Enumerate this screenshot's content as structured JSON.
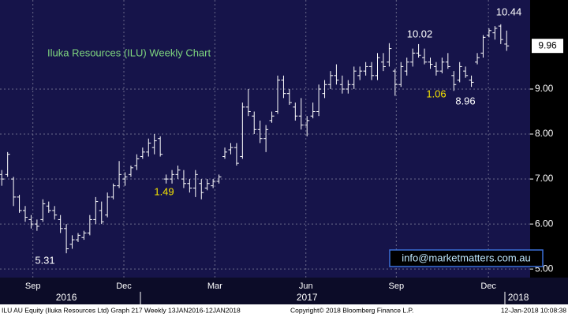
{
  "chart_data": {
    "type": "ohlc",
    "title": "Iluka Resources (ILU) Weekly Chart",
    "color": "#ffffff",
    "ylim": [
      4.81,
      10.98
    ],
    "yticks": [
      {
        "value": 5,
        "label": "5.00"
      },
      {
        "value": 6,
        "label": "6.00"
      },
      {
        "value": 7,
        "label": "7.00"
      },
      {
        "value": 8,
        "label": "8.00"
      },
      {
        "value": 9,
        "label": "9.00"
      }
    ],
    "xlim": [
      -0.3,
      90
    ],
    "xticks": [
      {
        "value": 5.3,
        "label": "Sep"
      },
      {
        "value": 20.8,
        "label": "Dec"
      },
      {
        "value": 36.3,
        "label": "Mar"
      },
      {
        "value": 51.8,
        "label": "Jun"
      },
      {
        "value": 67.2,
        "label": "Sep"
      },
      {
        "value": 82.9,
        "label": "Dec"
      }
    ],
    "year_labels": [
      {
        "value": 11,
        "label": "2016"
      },
      {
        "value": 52,
        "label": "2017"
      },
      {
        "value": 88,
        "label": "2018"
      }
    ],
    "grid": true,
    "last_price": 9.96,
    "annotations": [
      "10.44",
      "10.02",
      "1.06",
      "8.96",
      "1.49",
      "5.31"
    ],
    "website": "info@marketmatters.com.au",
    "footer": [
      "ILU AU Equity (Iluka Resources Ltd) Graph 217  Weekly 13JAN2016-12JAN2018",
      "Copyright© 2018 Bloomberg Finance L.P.",
      "12-Jan-2018 10:08:38"
    ],
    "open": [
      7.1,
      7.1,
      7.0,
      6.6,
      6.3,
      6.1,
      6.0,
      6.1,
      6.4,
      6.3,
      6.1,
      5.9,
      5.55,
      5.65,
      5.7,
      5.8,
      6.1,
      6.3,
      6.2,
      6.6,
      6.85,
      7.0,
      7.1,
      7.3,
      7.5,
      7.6,
      7.7,
      7.9,
      7.0,
      7.0,
      7.1,
      7.0,
      6.9,
      6.8,
      6.9,
      6.8,
      6.85,
      6.95,
      7.5,
      7.65,
      7.7,
      7.5,
      8.6,
      8.4,
      8.1,
      7.9,
      8.3,
      8.5,
      9.2,
      8.9,
      8.6,
      8.4,
      8.2,
      8.4,
      8.5,
      8.9,
      9.1,
      9.3,
      9.1,
      9.0,
      9.1,
      9.3,
      9.4,
      9.5,
      9.3,
      9.6,
      9.6,
      9.4,
      9.1,
      9.4,
      9.6,
      9.8,
      9.7,
      9.6,
      9.5,
      9.4,
      9.6,
      9.3,
      9.2,
      9.4,
      9.2,
      9.6,
      9.8,
      10.2,
      10.25,
      10.4,
      10.0
    ],
    "high": [
      7.2,
      7.6,
      7.05,
      6.65,
      6.4,
      6.2,
      6.1,
      6.55,
      6.5,
      6.4,
      6.2,
      6.0,
      5.75,
      5.8,
      5.85,
      6.2,
      6.6,
      6.5,
      6.7,
      6.9,
      7.4,
      7.15,
      7.3,
      7.55,
      7.7,
      7.9,
      8.0,
      7.95,
      7.1,
      7.2,
      7.3,
      7.2,
      7.0,
      7.2,
      7.0,
      7.0,
      7.0,
      7.1,
      7.7,
      7.8,
      7.8,
      8.7,
      9.0,
      8.5,
      8.3,
      8.2,
      8.5,
      9.3,
      9.3,
      9.0,
      8.7,
      8.8,
      8.4,
      8.7,
      9.1,
      9.2,
      9.4,
      9.55,
      9.3,
      9.2,
      9.5,
      9.5,
      9.6,
      9.6,
      9.8,
      9.8,
      10.02,
      9.45,
      9.6,
      9.7,
      9.9,
      10.0,
      9.9,
      9.7,
      9.6,
      9.7,
      9.8,
      9.4,
      9.6,
      9.5,
      9.3,
      9.8,
      10.2,
      10.35,
      10.4,
      10.44,
      10.3
    ],
    "low": [
      6.85,
      7.05,
      6.4,
      6.25,
      6.05,
      5.9,
      5.85,
      6.05,
      6.25,
      6.1,
      5.8,
      5.35,
      5.45,
      5.6,
      5.65,
      5.75,
      6.0,
      6.0,
      6.15,
      6.55,
      6.8,
      6.85,
      7.05,
      7.2,
      7.45,
      7.5,
      7.55,
      7.5,
      6.9,
      6.9,
      7.0,
      6.8,
      6.7,
      6.6,
      6.55,
      6.75,
      6.8,
      6.9,
      7.45,
      7.55,
      7.3,
      7.45,
      8.4,
      8.0,
      7.8,
      7.6,
      8.25,
      8.45,
      8.8,
      8.65,
      8.3,
      8.1,
      7.95,
      8.35,
      8.4,
      8.8,
      9.0,
      9.1,
      8.9,
      8.9,
      9.0,
      9.2,
      9.3,
      9.2,
      9.2,
      9.4,
      9.5,
      8.85,
      9.05,
      9.3,
      9.5,
      9.7,
      9.55,
      9.45,
      9.3,
      9.35,
      9.45,
      8.96,
      9.15,
      9.25,
      9.05,
      9.55,
      9.7,
      10.15,
      10.1,
      10.0,
      9.85
    ],
    "close": [
      7.0,
      7.55,
      6.6,
      6.3,
      6.15,
      6.0,
      5.95,
      6.45,
      6.3,
      6.2,
      5.9,
      5.45,
      5.65,
      5.75,
      5.8,
      6.1,
      6.5,
      6.05,
      6.6,
      6.85,
      7.1,
      7.05,
      7.25,
      7.45,
      7.6,
      7.8,
      7.85,
      7.55,
      7.0,
      7.1,
      7.2,
      6.9,
      6.8,
      7.1,
      6.7,
      6.9,
      6.95,
      7.05,
      7.6,
      7.7,
      7.35,
      8.6,
      8.5,
      8.1,
      7.9,
      8.1,
      8.4,
      9.2,
      8.9,
      8.7,
      8.4,
      8.2,
      8.3,
      8.5,
      9.0,
      9.1,
      9.3,
      9.2,
      9.0,
      9.1,
      9.4,
      9.4,
      9.5,
      9.3,
      9.7,
      9.5,
      9.9,
      9.1,
      9.5,
      9.6,
      9.8,
      9.75,
      9.6,
      9.55,
      9.4,
      9.6,
      9.5,
      9.1,
      9.5,
      9.3,
      9.15,
      9.7,
      10.15,
      10.3,
      10.35,
      10.1,
      9.96
    ]
  }
}
